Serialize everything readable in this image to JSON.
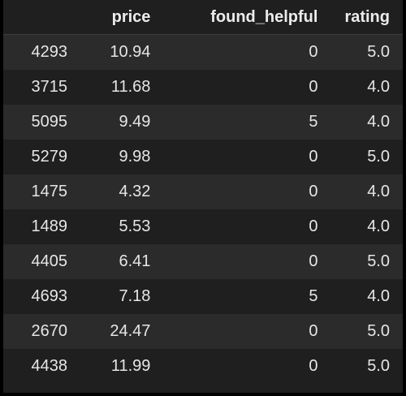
{
  "table": {
    "columns": [
      "",
      "price",
      "found_helpful",
      "rating"
    ],
    "rows": [
      {
        "index": "4293",
        "price": "10.94",
        "found_helpful": "0",
        "rating": "5.0"
      },
      {
        "index": "3715",
        "price": "11.68",
        "found_helpful": "0",
        "rating": "4.0"
      },
      {
        "index": "5095",
        "price": "9.49",
        "found_helpful": "5",
        "rating": "4.0"
      },
      {
        "index": "5279",
        "price": "9.98",
        "found_helpful": "0",
        "rating": "5.0"
      },
      {
        "index": "1475",
        "price": "4.32",
        "found_helpful": "0",
        "rating": "4.0"
      },
      {
        "index": "1489",
        "price": "5.53",
        "found_helpful": "0",
        "rating": "4.0"
      },
      {
        "index": "4405",
        "price": "6.41",
        "found_helpful": "0",
        "rating": "5.0"
      },
      {
        "index": "4693",
        "price": "7.18",
        "found_helpful": "5",
        "rating": "4.0"
      },
      {
        "index": "2670",
        "price": "24.47",
        "found_helpful": "0",
        "rating": "5.0"
      },
      {
        "index": "4438",
        "price": "11.99",
        "found_helpful": "0",
        "rating": "5.0"
      }
    ]
  },
  "colors": {
    "background": "#000000",
    "row_even": "#2b2b2b",
    "row_odd": "#1f1f1f",
    "text": "#ececec"
  }
}
